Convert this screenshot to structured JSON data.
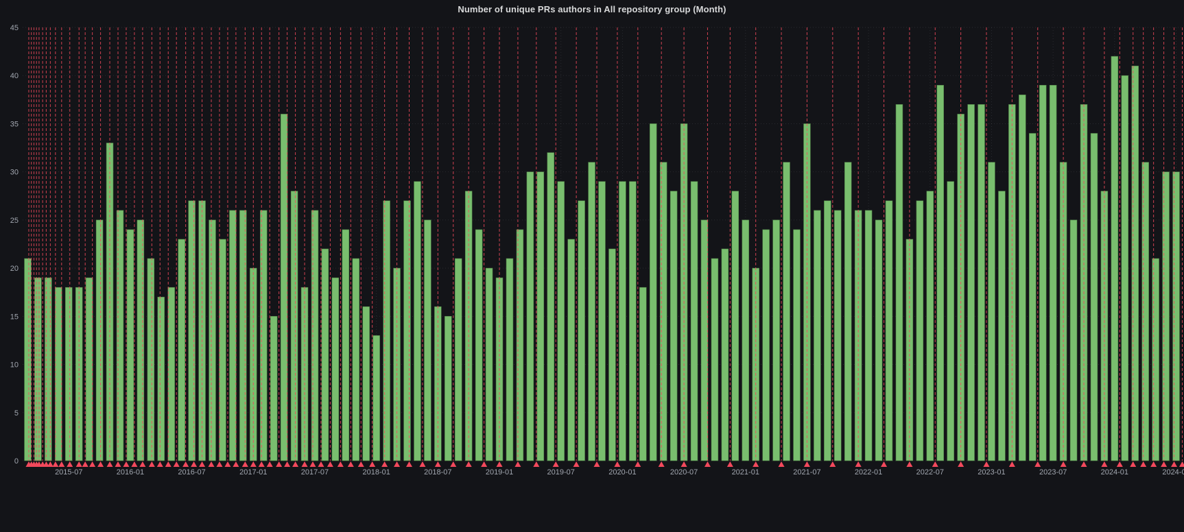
{
  "panel": {
    "title": "Number of unique PRs authors in All repository group (Month)"
  },
  "chart_data": {
    "type": "bar",
    "title": "Number of unique PRs authors in All repository group (Month)",
    "xlabel": "",
    "ylabel": "",
    "ylim": [
      0,
      45
    ],
    "yticks": [
      0,
      5,
      10,
      15,
      20,
      25,
      30,
      35,
      40,
      45
    ],
    "grid": true,
    "legend": "none",
    "bar_color": "#79BE6E",
    "bar_edge_color": "#4E7E45",
    "annotation_color": "#F2495C",
    "background_color": "#131418",
    "x_tick_labels": [
      "2015-07",
      "2016-01",
      "2016-07",
      "2017-01",
      "2017-07",
      "2018-01",
      "2018-07",
      "2019-01",
      "2019-07",
      "2020-01",
      "2020-07",
      "2021-01",
      "2021-07",
      "2022-01",
      "2022-07",
      "2023-01",
      "2023-07",
      "2024-01",
      "2024-07"
    ],
    "categories": [
      "2015-03",
      "2015-04",
      "2015-05",
      "2015-06",
      "2015-07",
      "2015-08",
      "2015-09",
      "2015-10",
      "2015-11",
      "2015-12",
      "2016-01",
      "2016-02",
      "2016-03",
      "2016-04",
      "2016-05",
      "2016-06",
      "2016-07",
      "2016-08",
      "2016-09",
      "2016-10",
      "2016-11",
      "2016-12",
      "2017-01",
      "2017-02",
      "2017-03",
      "2017-04",
      "2017-05",
      "2017-06",
      "2017-07",
      "2017-08",
      "2017-09",
      "2017-10",
      "2017-11",
      "2017-12",
      "2018-01",
      "2018-02",
      "2018-03",
      "2018-04",
      "2018-05",
      "2018-06",
      "2018-07",
      "2018-08",
      "2018-09",
      "2018-10",
      "2018-11",
      "2018-12",
      "2019-01",
      "2019-02",
      "2019-03",
      "2019-04",
      "2019-05",
      "2019-06",
      "2019-07",
      "2019-08",
      "2019-09",
      "2019-10",
      "2019-11",
      "2019-12",
      "2020-01",
      "2020-02",
      "2020-03",
      "2020-04",
      "2020-05",
      "2020-06",
      "2020-07",
      "2020-08",
      "2020-09",
      "2020-10",
      "2020-11",
      "2020-12",
      "2021-01",
      "2021-02",
      "2021-03",
      "2021-04",
      "2021-05",
      "2021-06",
      "2021-07",
      "2021-08",
      "2021-09",
      "2021-10",
      "2021-11",
      "2021-12",
      "2022-01",
      "2022-02",
      "2022-03",
      "2022-04",
      "2022-05",
      "2022-06",
      "2022-07",
      "2022-08",
      "2022-09",
      "2022-10",
      "2022-11",
      "2022-12",
      "2023-01",
      "2023-02",
      "2023-03",
      "2023-04",
      "2023-05",
      "2023-06",
      "2023-07",
      "2023-08",
      "2023-09",
      "2023-10",
      "2023-11",
      "2023-12",
      "2024-01",
      "2024-02",
      "2024-03",
      "2024-04",
      "2024-05",
      "2024-06",
      "2024-07"
    ],
    "values": [
      21,
      19,
      19,
      18,
      18,
      18,
      19,
      25,
      33,
      26,
      24,
      25,
      21,
      17,
      18,
      23,
      27,
      27,
      25,
      23,
      26,
      26,
      20,
      26,
      15,
      36,
      28,
      18,
      26,
      22,
      19,
      24,
      21,
      16,
      13,
      27,
      20,
      27,
      29,
      25,
      16,
      15,
      21,
      28,
      24,
      20,
      19,
      21,
      24,
      30,
      30,
      32,
      29,
      23,
      27,
      31,
      29,
      22,
      29,
      29,
      18,
      35,
      31,
      28,
      35,
      29,
      25,
      21,
      22,
      28,
      25,
      20,
      24,
      25,
      31,
      24,
      35,
      26,
      27,
      26,
      31,
      26,
      26,
      25,
      27,
      37,
      23,
      27,
      28,
      39,
      29,
      36,
      37,
      37,
      31,
      28,
      37,
      38,
      34,
      39,
      39,
      31,
      25,
      37,
      34,
      28,
      42,
      40,
      41,
      31,
      21,
      30,
      30
    ],
    "annotations_month_index": [
      0.1,
      0.35,
      0.6,
      0.85,
      1.1,
      1.45,
      1.8,
      2.2,
      2.7,
      3.3,
      4.1,
      5.0,
      5.6,
      6.3,
      7.1,
      8.0,
      8.8,
      9.6,
      10.4,
      11.2,
      12.1,
      12.9,
      13.7,
      14.5,
      15.4,
      16.2,
      17.0,
      17.9,
      18.7,
      19.5,
      20.3,
      21.2,
      22.0,
      22.8,
      23.6,
      24.5,
      25.3,
      26.1,
      27.0,
      27.8,
      28.6,
      29.5,
      30.5,
      31.5,
      32.5,
      33.6,
      34.8,
      36.0,
      37.2,
      38.5,
      40.0,
      41.5,
      43.0,
      44.5,
      46.0,
      47.8,
      49.6,
      51.5,
      53.5,
      55.5,
      57.5,
      59.5,
      61.8,
      64.0,
      66.3,
      68.5,
      71.0,
      73.5,
      76.0,
      78.5,
      81.0,
      83.5,
      86.0,
      88.5,
      91.0,
      93.5,
      96.0,
      98.5,
      101.0,
      103.0,
      105.0,
      106.5,
      107.8,
      108.8,
      109.8,
      110.8,
      111.8,
      112.6
    ]
  }
}
